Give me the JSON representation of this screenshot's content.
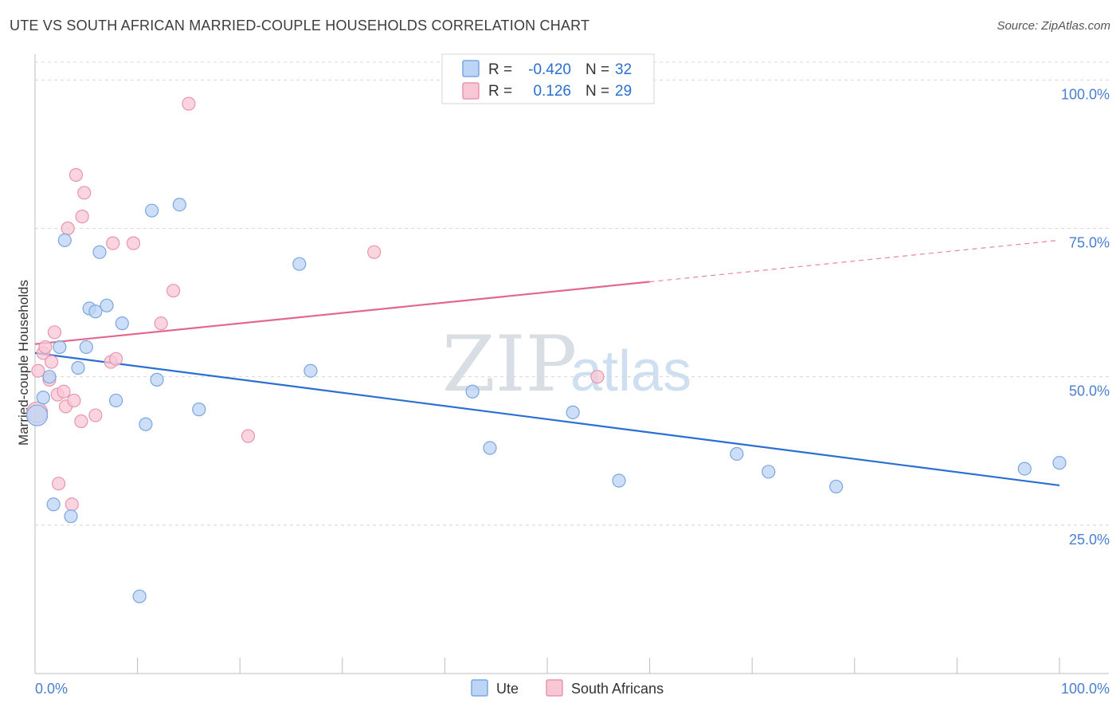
{
  "title": "UTE VS SOUTH AFRICAN MARRIED-COUPLE HOUSEHOLDS CORRELATION CHART",
  "source": "Source: ZipAtlas.com",
  "watermark": {
    "part1": "ZIP",
    "part2": "atlas"
  },
  "colors": {
    "ute_fill": "#bcd4f5",
    "ute_stroke": "#7aa6e0",
    "ute_line": "#2a6fd1",
    "sa_fill": "#f8c7d5",
    "sa_stroke": "#e895ae",
    "sa_line": "#e2668f",
    "accent_text": "#4a7fcf"
  },
  "legend": {
    "rows": [
      {
        "r_label": "R =",
        "r_value": "-0.420",
        "n_label": "N =",
        "n_value": "32"
      },
      {
        "r_label": "R =",
        "r_value": "0.126",
        "n_label": "N =",
        "n_value": "29"
      }
    ]
  },
  "bottom_legend": [
    "Ute",
    "South Africans"
  ],
  "chart_data": {
    "type": "scatter",
    "title": "UTE VS SOUTH AFRICAN MARRIED-COUPLE HOUSEHOLDS CORRELATION CHART",
    "xlabel": "",
    "ylabel": "Married-couple Households",
    "xlim": [
      0,
      100
    ],
    "ylim": [
      0,
      103
    ],
    "x_tick_labels": [
      "0.0%",
      "100.0%"
    ],
    "y_ticks": [
      25,
      50,
      75,
      100
    ],
    "y_tick_labels": [
      "25.0%",
      "50.0%",
      "75.0%",
      "100.0%"
    ],
    "series": [
      {
        "name": "Ute",
        "r": -0.42,
        "n": 32,
        "trend": {
          "x0": 0,
          "y0": 54.0,
          "x1": 100,
          "y1": 31.7,
          "solid_to": 100
        },
        "points": [
          {
            "x": 0.2,
            "y": 43.5
          },
          {
            "x": 0.8,
            "y": 46.5
          },
          {
            "x": 1.4,
            "y": 50.0
          },
          {
            "x": 1.8,
            "y": 28.5
          },
          {
            "x": 2.4,
            "y": 55.0
          },
          {
            "x": 2.9,
            "y": 73.0
          },
          {
            "x": 3.5,
            "y": 26.5
          },
          {
            "x": 4.2,
            "y": 51.5
          },
          {
            "x": 5.0,
            "y": 55.0
          },
          {
            "x": 5.3,
            "y": 61.5
          },
          {
            "x": 5.9,
            "y": 61.0
          },
          {
            "x": 6.3,
            "y": 71.0
          },
          {
            "x": 7.0,
            "y": 62.0
          },
          {
            "x": 7.9,
            "y": 46.0
          },
          {
            "x": 8.5,
            "y": 59.0
          },
          {
            "x": 10.2,
            "y": 13.0
          },
          {
            "x": 10.8,
            "y": 42.0
          },
          {
            "x": 11.4,
            "y": 78.0
          },
          {
            "x": 11.9,
            "y": 49.5
          },
          {
            "x": 14.1,
            "y": 79.0
          },
          {
            "x": 16.0,
            "y": 44.5
          },
          {
            "x": 25.8,
            "y": 69.0
          },
          {
            "x": 26.9,
            "y": 51.0
          },
          {
            "x": 42.7,
            "y": 47.5
          },
          {
            "x": 44.4,
            "y": 38.0
          },
          {
            "x": 52.5,
            "y": 44.0
          },
          {
            "x": 57.0,
            "y": 32.5
          },
          {
            "x": 68.5,
            "y": 37.0
          },
          {
            "x": 71.6,
            "y": 34.0
          },
          {
            "x": 78.2,
            "y": 31.5
          },
          {
            "x": 96.6,
            "y": 34.5
          },
          {
            "x": 100.0,
            "y": 35.5
          }
        ]
      },
      {
        "name": "South Africans",
        "r": 0.126,
        "n": 29,
        "trend": {
          "x0": 0,
          "y0": 55.5,
          "x1": 100,
          "y1": 73.0,
          "solid_to": 60
        },
        "points": [
          {
            "x": 0.2,
            "y": 44.0
          },
          {
            "x": 0.3,
            "y": 51.0
          },
          {
            "x": 0.8,
            "y": 54.0
          },
          {
            "x": 1.0,
            "y": 55.0
          },
          {
            "x": 1.4,
            "y": 49.5
          },
          {
            "x": 1.6,
            "y": 52.5
          },
          {
            "x": 1.9,
            "y": 57.5
          },
          {
            "x": 2.2,
            "y": 47.0
          },
          {
            "x": 2.3,
            "y": 32.0
          },
          {
            "x": 2.8,
            "y": 47.5
          },
          {
            "x": 3.0,
            "y": 45.0
          },
          {
            "x": 3.2,
            "y": 75.0
          },
          {
            "x": 3.6,
            "y": 28.5
          },
          {
            "x": 3.8,
            "y": 46.0
          },
          {
            "x": 4.0,
            "y": 84.0
          },
          {
            "x": 4.5,
            "y": 42.5
          },
          {
            "x": 4.6,
            "y": 77.0
          },
          {
            "x": 4.8,
            "y": 81.0
          },
          {
            "x": 5.9,
            "y": 43.5
          },
          {
            "x": 7.4,
            "y": 52.5
          },
          {
            "x": 7.6,
            "y": 72.5
          },
          {
            "x": 7.9,
            "y": 53.0
          },
          {
            "x": 9.6,
            "y": 72.5
          },
          {
            "x": 12.3,
            "y": 59.0
          },
          {
            "x": 13.5,
            "y": 64.5
          },
          {
            "x": 15.0,
            "y": 96.0
          },
          {
            "x": 20.8,
            "y": 40.0
          },
          {
            "x": 33.1,
            "y": 71.0
          },
          {
            "x": 54.9,
            "y": 50.0
          }
        ]
      }
    ]
  }
}
